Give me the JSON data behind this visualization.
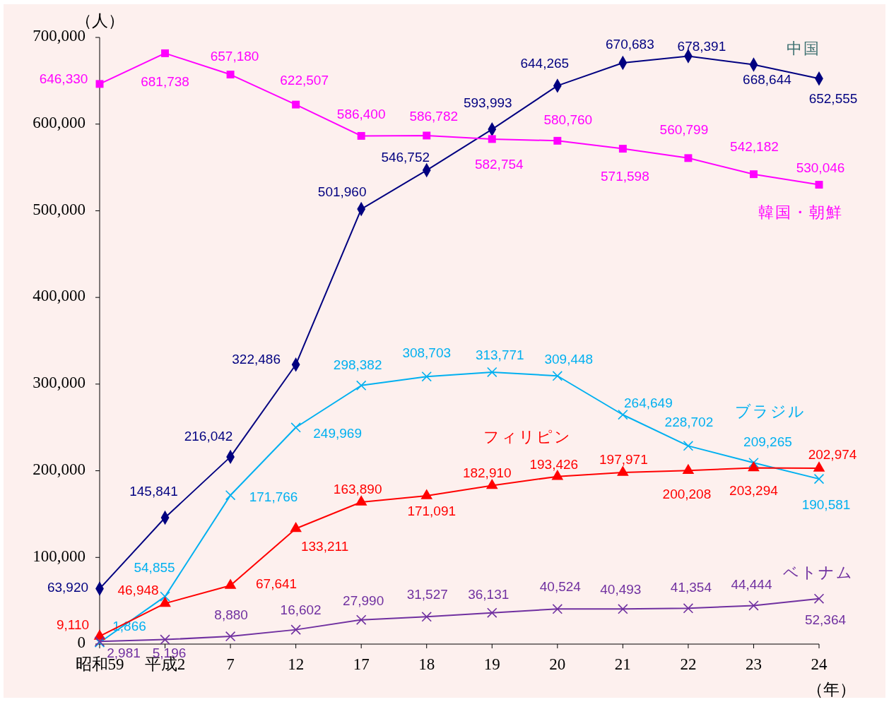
{
  "chart_data": {
    "type": "line",
    "ylabel": "（人）",
    "xlabel": "（年）",
    "categories": [
      "昭和59",
      "平成2",
      "7",
      "12",
      "17",
      "18",
      "19",
      "20",
      "21",
      "22",
      "23",
      "24"
    ],
    "ylim": [
      0,
      700000
    ],
    "yticks": [
      {
        "value": 0,
        "label": "0"
      },
      {
        "value": 100000,
        "label": "100,000"
      },
      {
        "value": 200000,
        "label": "200,000"
      },
      {
        "value": 300000,
        "label": "300,000"
      },
      {
        "value": 400000,
        "label": "400,000"
      },
      {
        "value": 500000,
        "label": "500,000"
      },
      {
        "value": 600000,
        "label": "600,000"
      },
      {
        "value": 700000,
        "label": "700,000"
      }
    ],
    "grid": false,
    "line_style": "solid",
    "series": [
      {
        "name": "中国",
        "color": "#000080",
        "marker": "diamond",
        "values": [
          63920,
          145841,
          216042,
          322486,
          501960,
          546752,
          593993,
          644265,
          670683,
          678391,
          668644,
          652555
        ],
        "value_labels": [
          "63,920",
          "145,841",
          "216,042",
          "322,486",
          "501,960",
          "546,752",
          "593,993",
          "644,265",
          "670,683",
          "678,391",
          "668,644",
          "652,555"
        ]
      },
      {
        "name": "韓国・朝鮮",
        "color": "#ff00ff",
        "marker": "square",
        "values": [
          646330,
          681738,
          657180,
          622507,
          586400,
          586782,
          582754,
          580760,
          571598,
          560799,
          542182,
          530046
        ],
        "value_labels": [
          "646,330",
          "681,738",
          "657,180",
          "622,507",
          "586,400",
          "586,782",
          "582,754",
          "580,760",
          "571,598",
          "560,799",
          "542,182",
          "530,046"
        ]
      },
      {
        "name": "ブラジル",
        "color": "#00b0f0",
        "marker": "cross",
        "values": [
          1866,
          54855,
          171766,
          249969,
          298382,
          308703,
          313771,
          309448,
          264649,
          228702,
          209265,
          190581
        ],
        "value_labels": [
          "1,866",
          "54,855",
          "171,766",
          "249,969",
          "298,382",
          "308,703",
          "313,771",
          "309,448",
          "264,649",
          "228,702",
          "209,265",
          "190,581"
        ]
      },
      {
        "name": "フィリピン",
        "color": "#ff0000",
        "marker": "triangle",
        "values": [
          9110,
          46948,
          67641,
          133211,
          163890,
          171091,
          182910,
          193426,
          197971,
          200208,
          203294,
          202974
        ],
        "value_labels": [
          "9,110",
          "46,948",
          "67,641",
          "133,211",
          "163,890",
          "171,091",
          "182,910",
          "193,426",
          "197,971",
          "200,208",
          "203,294",
          "202,974"
        ]
      },
      {
        "name": "ベトナム",
        "color": "#7030a0",
        "marker": "cross",
        "values": [
          2981,
          5196,
          8880,
          16602,
          27990,
          31527,
          36131,
          40524,
          40493,
          41354,
          44444,
          52364
        ],
        "value_labels": [
          "2,981",
          "5,196",
          "8,880",
          "16,602",
          "27,990",
          "31,527",
          "36,131",
          "40,524",
          "40,493",
          "41,354",
          "44,444",
          "52,364"
        ]
      }
    ]
  }
}
